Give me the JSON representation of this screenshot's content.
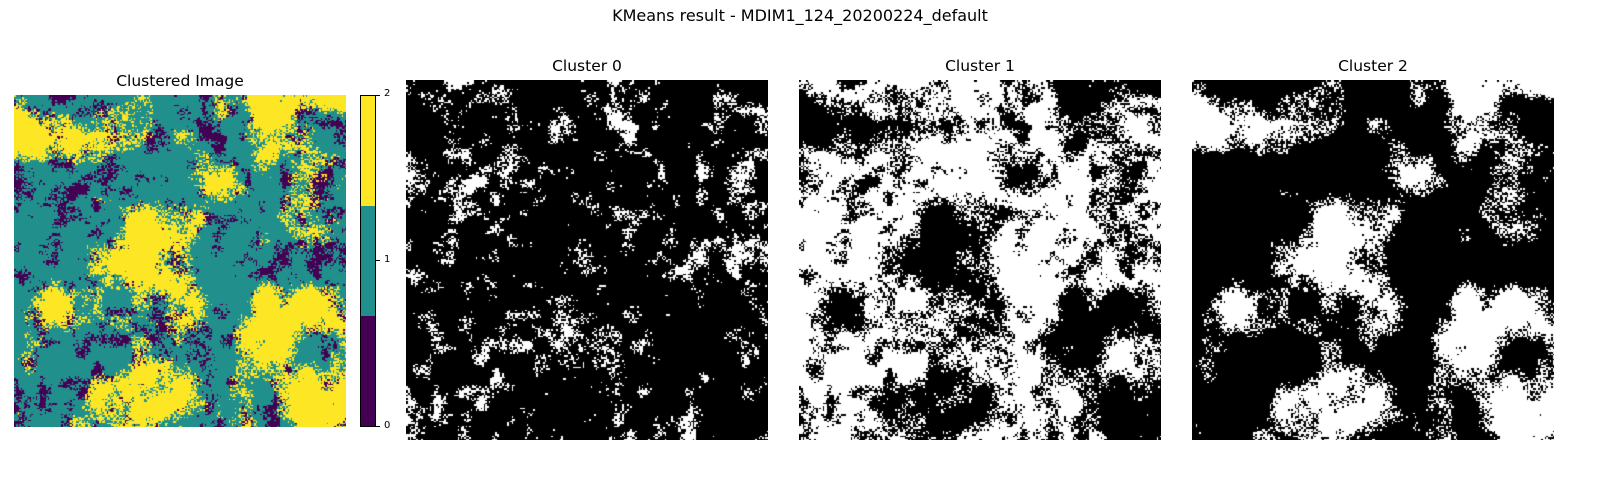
{
  "chart_data": {
    "type": "heatmap",
    "suptitle": "KMeans result - MDIM1_124_20200224_default",
    "panels": [
      {
        "title": "Clustered Image",
        "kind": "labels",
        "colormap": "viridis",
        "colors": [
          "#440154",
          "#21908d",
          "#fde725"
        ],
        "colorbar": {
          "ticks": [
            "0",
            "1",
            "2"
          ],
          "range": [
            0,
            2
          ]
        }
      },
      {
        "title": "Cluster 0",
        "kind": "mask",
        "cluster": 0,
        "colors": [
          "#000000",
          "#ffffff"
        ]
      },
      {
        "title": "Cluster 1",
        "kind": "mask",
        "cluster": 1,
        "colors": [
          "#000000",
          "#ffffff"
        ]
      },
      {
        "title": "Cluster 2",
        "kind": "mask",
        "cluster": 2,
        "colors": [
          "#000000",
          "#ffffff"
        ]
      }
    ]
  }
}
